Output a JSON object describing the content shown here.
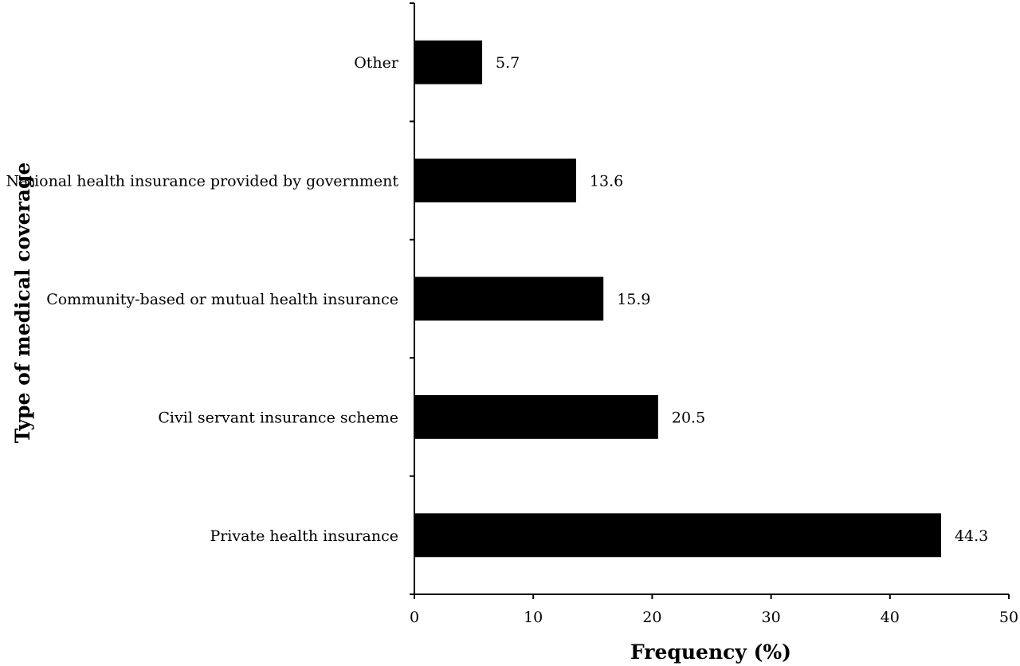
{
  "chart_data": {
    "type": "bar",
    "orientation": "horizontal",
    "title": "",
    "xlabel": "Frequency (%)",
    "ylabel": "Type of medical coverage",
    "categories": [
      "Other",
      "National health insurance provided by government",
      "Community-based or mutual health insurance",
      "Civil servant insurance scheme",
      "Private health insurance"
    ],
    "values": [
      5.7,
      13.6,
      15.9,
      20.5,
      44.3
    ],
    "value_labels": [
      "5.7",
      "13.6",
      "15.9",
      "20.5",
      "44.3"
    ],
    "xlim": [
      0,
      50
    ],
    "xticks": [
      0,
      10,
      20,
      30,
      40,
      50
    ],
    "grid": false,
    "legend": "none",
    "bar_color": "#000000"
  }
}
